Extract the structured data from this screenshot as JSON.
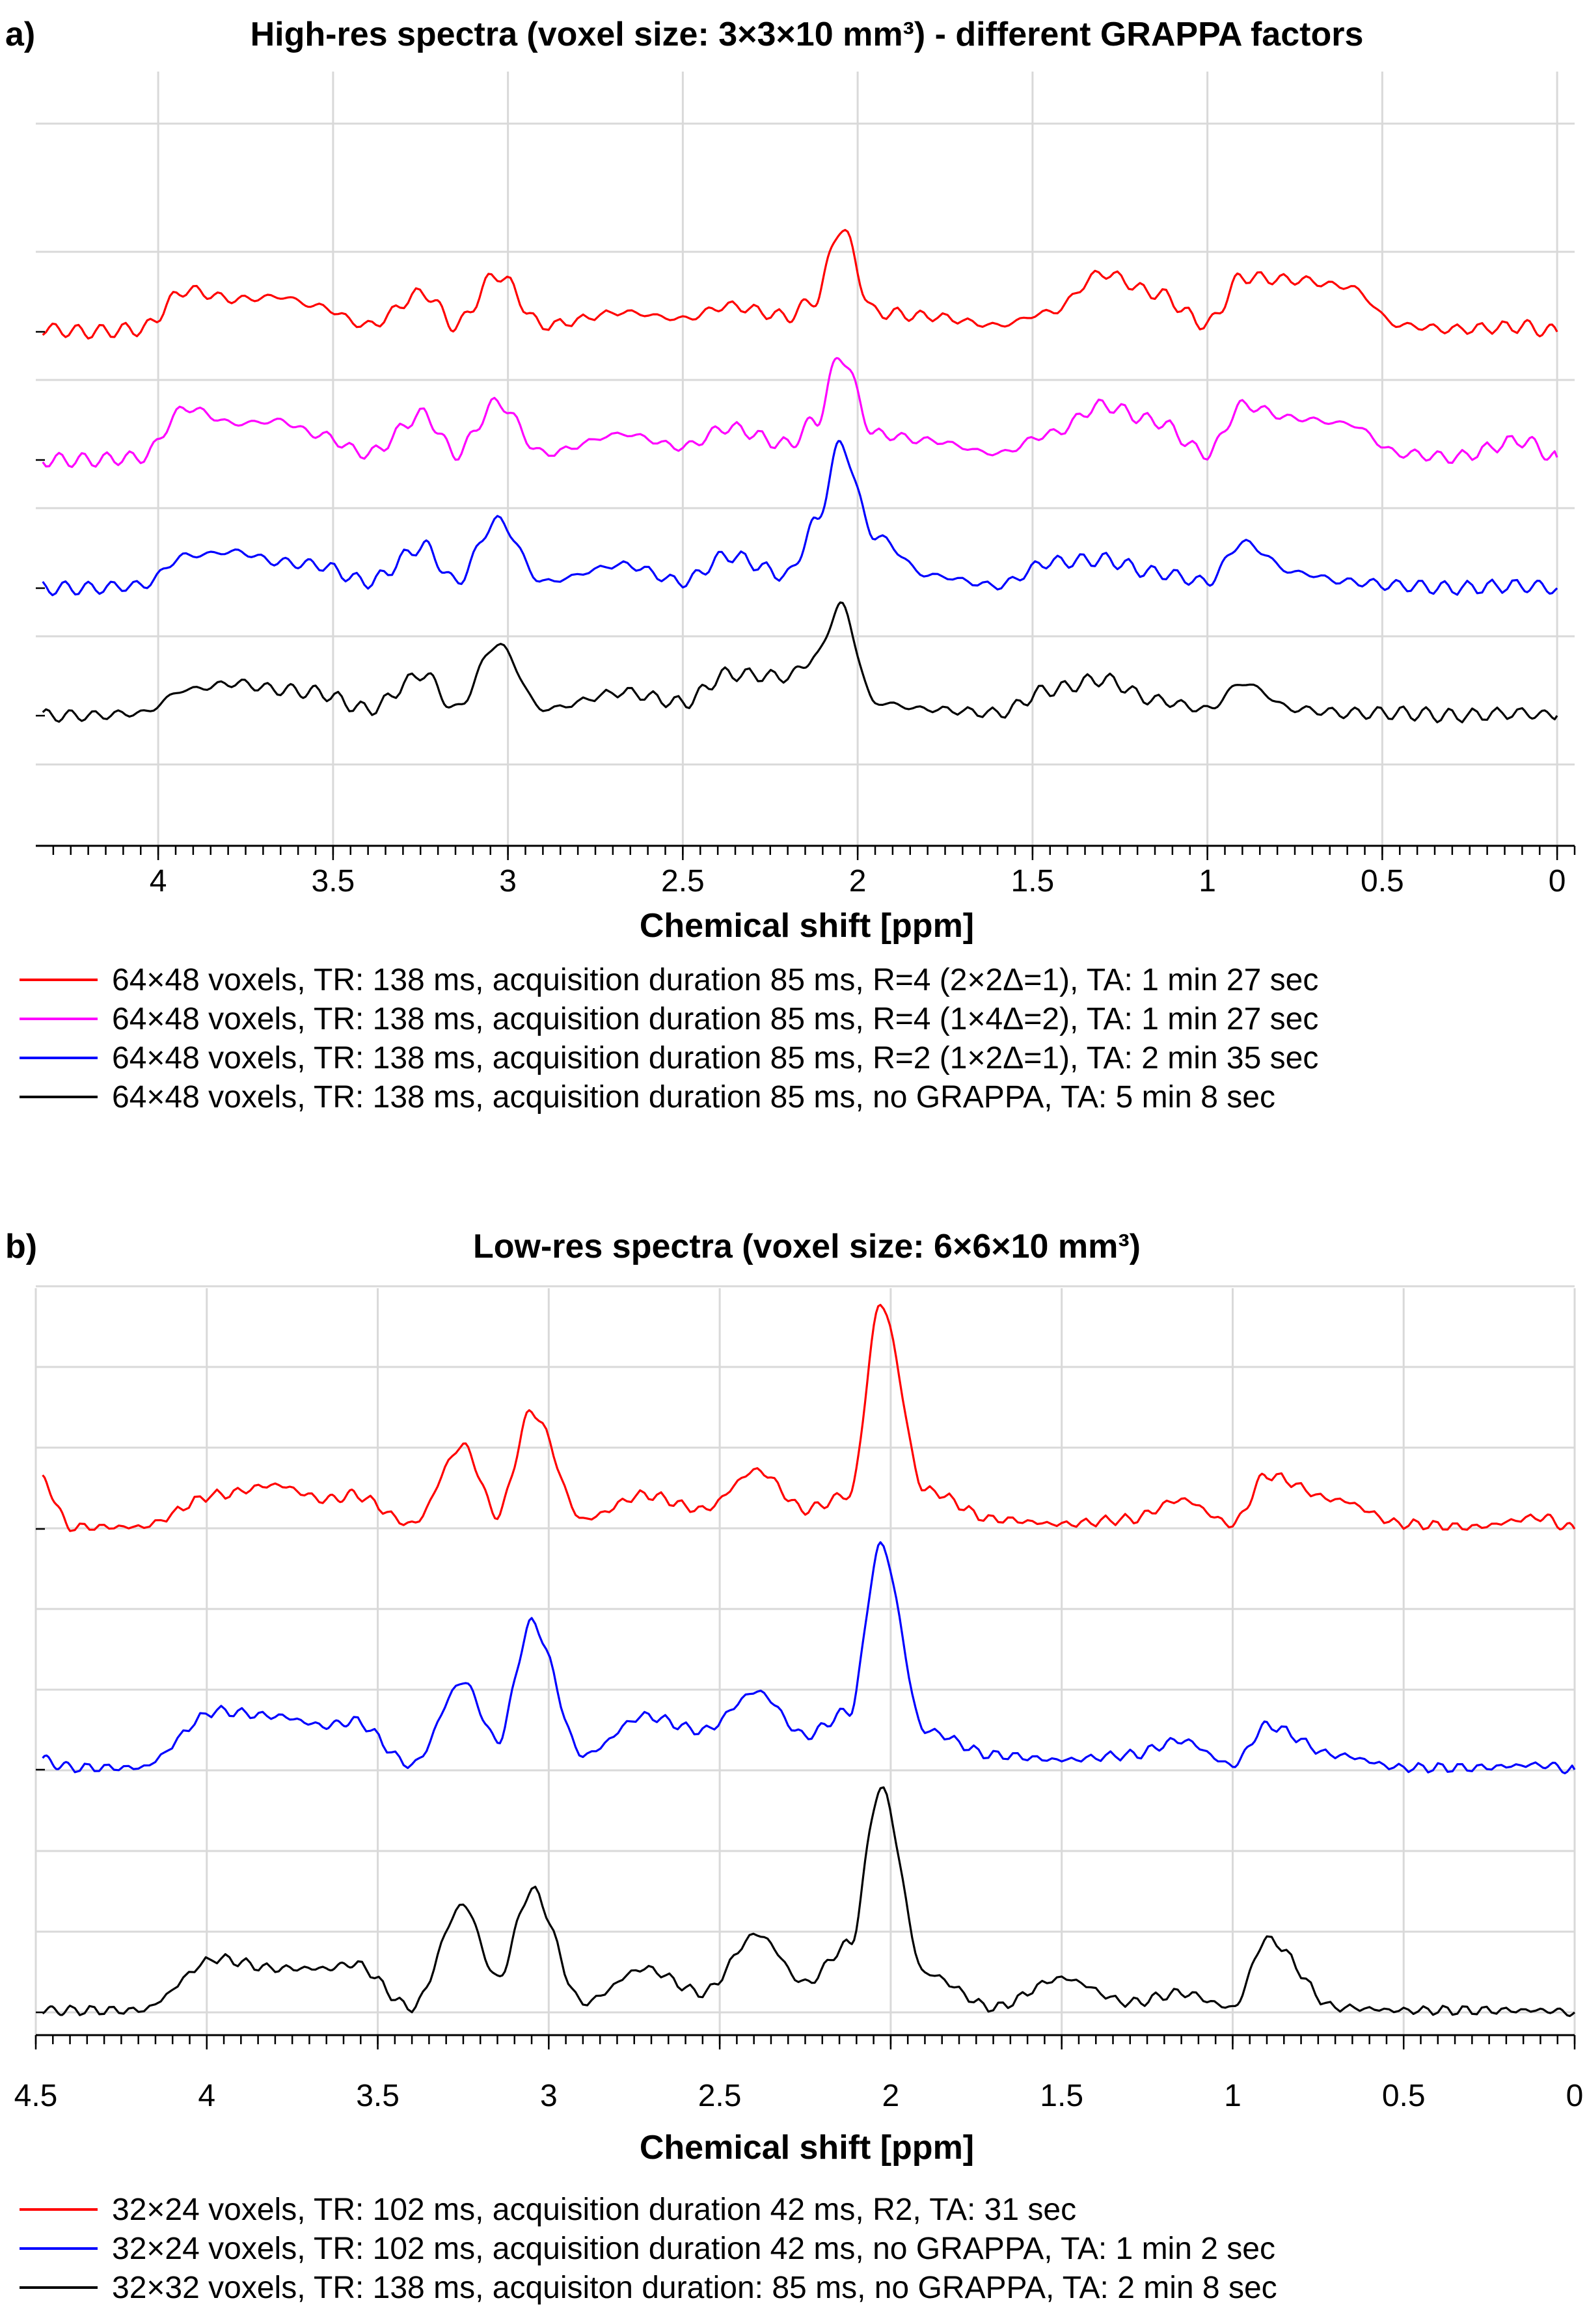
{
  "chart_data": [
    {
      "panel": "a)",
      "type": "line",
      "title": "High-res spectra (voxel size: 3×3×10 mm³) - different GRAPPA factors",
      "xlabel": "Chemical shift [ppm]",
      "x_reversed": true,
      "xlim": [
        4.35,
        -0.05
      ],
      "xticks": [
        "4",
        "3.5",
        "3",
        "2.5",
        "2",
        "1.5",
        "1",
        "0.5",
        "0"
      ],
      "grid": true,
      "legend_position": "below",
      "stacked_offsets": true,
      "peaks_ppm": [
        3.92,
        3.78,
        3.65,
        3.55,
        3.24,
        3.03,
        2.67,
        2.37,
        2.05,
        1.3,
        0.9
      ],
      "series": [
        {
          "name": "64×48 voxels, TR: 138 ms, acquisition duration 85 ms, R=4 (2×2Δ=1), TA: 1 min 27 sec",
          "color": "#ff0000",
          "x": [
            4.33,
            4.2,
            4.05,
            3.92,
            3.78,
            3.65,
            3.55,
            3.4,
            3.24,
            3.15,
            3.03,
            2.9,
            2.67,
            2.5,
            2.37,
            2.2,
            2.12,
            2.05,
            1.95,
            1.8,
            1.6,
            1.45,
            1.3,
            1.15,
            1.0,
            0.9,
            0.75,
            0.6,
            0.45,
            0.3,
            0.1,
            0.0
          ],
          "y": [
            0.02,
            0.0,
            0.02,
            0.32,
            0.25,
            0.27,
            0.2,
            0.05,
            0.3,
            0.05,
            0.44,
            0.05,
            0.15,
            0.1,
            0.2,
            0.12,
            0.25,
            0.8,
            0.15,
            0.12,
            0.05,
            0.15,
            0.45,
            0.3,
            0.06,
            0.42,
            0.4,
            0.35,
            0.05,
            0.02,
            0.04,
            0.0
          ]
        },
        {
          "name": "64×48 voxels, TR: 138 ms, acquisition duration 85 ms, R=4 (1×4Δ=2), TA: 1 min 27 sec",
          "color": "#ff00ff",
          "x": [
            4.33,
            4.2,
            4.05,
            3.92,
            3.78,
            3.65,
            3.55,
            3.4,
            3.24,
            3.15,
            3.03,
            2.9,
            2.67,
            2.5,
            2.37,
            2.2,
            2.12,
            2.05,
            1.95,
            1.8,
            1.6,
            1.45,
            1.3,
            1.15,
            1.0,
            0.9,
            0.75,
            0.6,
            0.45,
            0.3,
            0.1,
            0.0
          ],
          "y": [
            0.0,
            0.0,
            0.02,
            0.4,
            0.28,
            0.3,
            0.2,
            0.05,
            0.35,
            0.05,
            0.44,
            0.05,
            0.2,
            0.1,
            0.25,
            0.12,
            0.3,
            0.8,
            0.2,
            0.15,
            0.05,
            0.2,
            0.42,
            0.3,
            0.05,
            0.42,
            0.32,
            0.28,
            0.05,
            0.02,
            0.15,
            0.02
          ]
        },
        {
          "name": "64×48 voxels, TR: 138 ms, acquisition duration 85 ms, R=2 (1×2Δ=1), TA: 2 min 35 sec",
          "color": "#0000ff",
          "x": [
            4.33,
            4.2,
            4.05,
            3.92,
            3.78,
            3.65,
            3.55,
            3.4,
            3.24,
            3.15,
            3.03,
            2.9,
            2.67,
            2.5,
            2.37,
            2.2,
            2.12,
            2.05,
            1.95,
            1.8,
            1.6,
            1.45,
            1.3,
            1.15,
            1.0,
            0.9,
            0.75,
            0.6,
            0.45,
            0.3,
            0.1,
            0.0
          ],
          "y": [
            0.0,
            0.0,
            0.02,
            0.25,
            0.28,
            0.2,
            0.18,
            0.05,
            0.32,
            0.05,
            0.52,
            0.05,
            0.18,
            0.05,
            0.25,
            0.1,
            0.5,
            1.1,
            0.4,
            0.1,
            0.02,
            0.2,
            0.22,
            0.12,
            0.05,
            0.35,
            0.12,
            0.05,
            0.02,
            0.0,
            0.02,
            0.0
          ]
        },
        {
          "name": "64×48 voxels, TR: 138 ms, acquisition duration 85 ms, no GRAPPA, TA: 5 min 8 sec",
          "color": "#000000",
          "x": [
            4.33,
            4.2,
            4.05,
            3.92,
            3.78,
            3.65,
            3.55,
            3.4,
            3.24,
            3.15,
            3.03,
            2.9,
            2.67,
            2.5,
            2.37,
            2.2,
            2.12,
            2.05,
            1.95,
            1.8,
            1.6,
            1.45,
            1.3,
            1.15,
            1.0,
            0.9,
            0.75,
            0.6,
            0.45,
            0.3,
            0.1,
            0.0
          ],
          "y": [
            0.0,
            0.0,
            0.02,
            0.2,
            0.25,
            0.2,
            0.18,
            0.05,
            0.32,
            0.05,
            0.55,
            0.05,
            0.18,
            0.1,
            0.32,
            0.3,
            0.45,
            0.85,
            0.1,
            0.05,
            0.02,
            0.2,
            0.28,
            0.12,
            0.05,
            0.25,
            0.05,
            0.02,
            0.02,
            0.0,
            0.02,
            0.0
          ]
        }
      ]
    },
    {
      "panel": "b)",
      "type": "line",
      "title": "Low-res spectra (voxel size: 6×6×10 mm³)",
      "xlabel": "Chemical shift [ppm]",
      "x_reversed": true,
      "xlim": [
        4.5,
        0
      ],
      "xticks": [
        "4.5",
        "4",
        "3.5",
        "3",
        "2.5",
        "2",
        "1.5",
        "1",
        "0.5",
        "0"
      ],
      "grid": true,
      "legend_position": "below",
      "stacked_offsets": true,
      "peaks_ppm": [
        3.97,
        3.8,
        3.65,
        3.57,
        3.25,
        3.05,
        2.72,
        2.39,
        2.03,
        0.9
      ],
      "series": [
        {
          "name": "32×24 voxels, TR: 102 ms, acquisition duration 42 ms, R2, TA: 31 sec",
          "color": "#ff0000",
          "x": [
            4.48,
            4.4,
            4.2,
            3.97,
            3.8,
            3.65,
            3.57,
            3.4,
            3.25,
            3.15,
            3.05,
            2.9,
            2.72,
            2.55,
            2.39,
            2.25,
            2.12,
            2.03,
            1.9,
            1.7,
            1.5,
            1.3,
            1.15,
            1.0,
            0.9,
            0.7,
            0.5,
            0.3,
            0.1,
            0.0
          ],
          "y": [
            0.5,
            0.02,
            0.02,
            0.35,
            0.45,
            0.3,
            0.35,
            0.05,
            0.85,
            0.15,
            1.2,
            0.1,
            0.35,
            0.2,
            0.6,
            0.2,
            0.35,
            2.3,
            0.4,
            0.1,
            0.05,
            0.1,
            0.3,
            0.05,
            0.55,
            0.3,
            0.05,
            0.02,
            0.12,
            0.0
          ]
        },
        {
          "name": "32×24 voxels, TR: 102 ms, acquisition duration 42 ms, no GRAPPA, TA: 1 min 2 sec",
          "color": "#0000ff",
          "x": [
            4.48,
            4.4,
            4.2,
            3.97,
            3.8,
            3.65,
            3.57,
            3.4,
            3.25,
            3.15,
            3.05,
            2.9,
            2.72,
            2.55,
            2.39,
            2.25,
            2.12,
            2.03,
            1.9,
            1.7,
            1.5,
            1.3,
            1.15,
            1.0,
            0.9,
            0.7,
            0.5,
            0.3,
            0.1,
            0.0
          ],
          "y": [
            0.1,
            0.02,
            0.02,
            0.6,
            0.55,
            0.45,
            0.5,
            0.05,
            0.9,
            0.3,
            1.5,
            0.15,
            0.55,
            0.4,
            0.8,
            0.35,
            0.6,
            2.3,
            0.4,
            0.15,
            0.1,
            0.15,
            0.3,
            0.05,
            0.45,
            0.15,
            0.02,
            0.02,
            0.05,
            0.0
          ]
        },
        {
          "name": "32×32 voxels, TR: 138 ms, acquisiton duration: 85 ms, no GRAPPA, TA: 2 min 8 sec",
          "color": "#000000",
          "x": [
            4.48,
            4.4,
            4.2,
            3.97,
            3.8,
            3.65,
            3.57,
            3.4,
            3.25,
            3.15,
            3.05,
            2.9,
            2.72,
            2.55,
            2.39,
            2.25,
            2.12,
            2.03,
            1.9,
            1.7,
            1.5,
            1.3,
            1.15,
            1.0,
            0.9,
            0.7,
            0.5,
            0.3,
            0.1,
            0.0
          ],
          "y": [
            0.02,
            0.02,
            0.02,
            0.55,
            0.45,
            0.45,
            0.5,
            0.05,
            1.1,
            0.35,
            1.25,
            0.1,
            0.45,
            0.2,
            0.8,
            0.3,
            0.7,
            2.3,
            0.4,
            0.05,
            0.35,
            0.1,
            0.2,
            0.05,
            0.75,
            0.05,
            0.02,
            0.02,
            0.02,
            0.0
          ]
        }
      ]
    }
  ]
}
